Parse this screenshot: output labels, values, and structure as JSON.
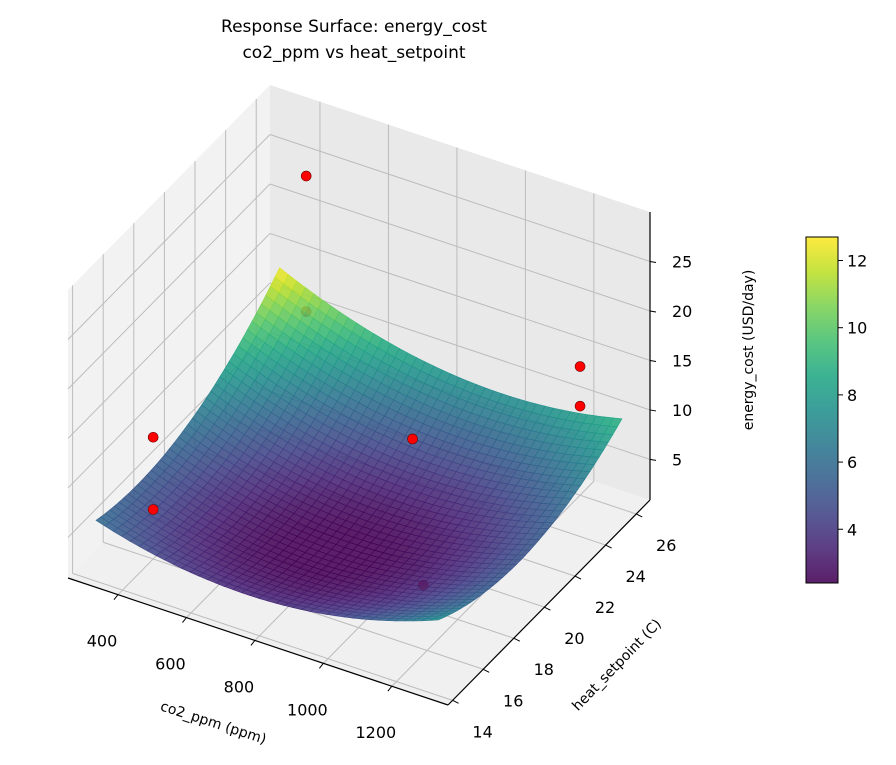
{
  "chart_data": {
    "type": "surface3d",
    "title": "Response Surface: energy_cost",
    "subtitle": "co2_ppm vs heat_setpoint",
    "xlabel": "co2_ppm (ppm)",
    "ylabel": "heat_setpoint (C)",
    "zlabel": "energy_cost (USD/day)",
    "xlim": [
      254,
      1364
    ],
    "ylim": [
      13.7,
      26.9
    ],
    "zlim": [
      0.9,
      30
    ],
    "xticks": [
      "400",
      "600",
      "800",
      "1000",
      "1200"
    ],
    "yticks": [
      "14",
      "16",
      "18",
      "20",
      "22",
      "24",
      "26"
    ],
    "zticks": [
      "5",
      "10",
      "15",
      "20",
      "25"
    ],
    "grid": true,
    "colormap": "viridis",
    "surface": {
      "x_range": [
        300,
        1300
      ],
      "y_range": [
        14.5,
        26.5
      ],
      "model": "z = 2.6 + 3.1*xn^2 + 3.1*yn^2 - 1.3*xn*yn - 0.55*xn + 2.05*yn; xn=(x-800)/500, yn=(y-20.5)/6",
      "coefficients": {
        "c0": 2.6,
        "xx": 3.1,
        "yy": 3.1,
        "xy": -1.3,
        "x": -0.55,
        "y": 2.05
      }
    },
    "colorbar": {
      "ticks": [
        "4",
        "6",
        "8",
        "10",
        "12"
      ],
      "range": [
        2.4,
        12.7
      ]
    },
    "scatter": {
      "color": "#ff0000",
      "points": [
        {
          "x": 400,
          "y": 26,
          "z": 23.9
        },
        {
          "x": 400,
          "y": 26,
          "z": 10.2
        },
        {
          "x": 400,
          "y": 16,
          "z": 13.2
        },
        {
          "x": 400,
          "y": 16,
          "z": 5.9
        },
        {
          "x": 800,
          "y": 24,
          "z": 5.1
        },
        {
          "x": 1100,
          "y": 18,
          "z": 3.2
        },
        {
          "x": 1200,
          "y": 26,
          "z": 13.9
        },
        {
          "x": 1200,
          "y": 26,
          "z": 9.9
        }
      ]
    }
  }
}
